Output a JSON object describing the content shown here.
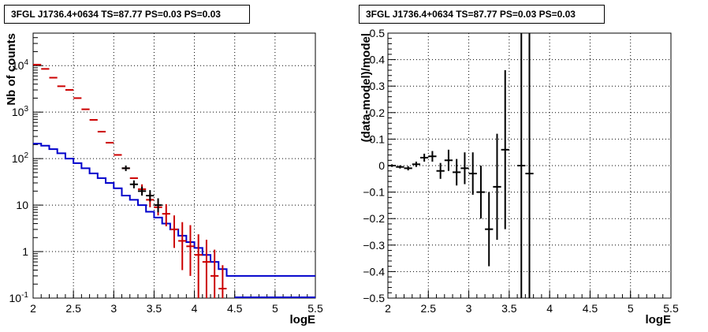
{
  "chart_data": [
    {
      "type": "step-histogram-with-errorbars",
      "title": "3FGL J1736.4+0634 TS=87.77 PS=0.03 PS=0.03",
      "xlabel": "logE",
      "ylabel": "Nb of counts",
      "xlim": [
        2,
        5.5
      ],
      "ylim": [
        0.1,
        50000
      ],
      "yscale": "log",
      "grid": true,
      "x_ticks": [
        "2",
        "2.5",
        "3",
        "3.5",
        "4",
        "4.5",
        "5",
        "5.5"
      ],
      "y_ticks": [
        {
          "v": 0.1,
          "label": "10^-1"
        },
        {
          "v": 1,
          "label": "1"
        },
        {
          "v": 10,
          "label": "10"
        },
        {
          "v": 100,
          "label": "10^2"
        },
        {
          "v": 1000,
          "label": "10^3"
        },
        {
          "v": 10000,
          "label": "10^4"
        }
      ],
      "bin_width": 0.1,
      "series": [
        {
          "role": "model",
          "color": "#0000cc",
          "bins_start": [
            2.0,
            2.1,
            2.2,
            2.3,
            2.4,
            2.5,
            2.6,
            2.7,
            2.8,
            2.9,
            3.0,
            3.1,
            3.2,
            3.3,
            3.4,
            3.5,
            3.6,
            3.7,
            3.8,
            3.9,
            4.0,
            4.1,
            4.2,
            4.3,
            4.4
          ],
          "values": [
            210,
            190,
            160,
            130,
            100,
            80,
            62,
            48,
            38,
            30,
            23,
            16,
            13,
            10,
            7.2,
            5.4,
            4.0,
            3.0,
            2.2,
            1.6,
            1.2,
            0.85,
            0.6,
            0.42,
            0.3
          ]
        },
        {
          "role": "model-total",
          "color": "#cc0000",
          "x": [
            2.05,
            2.15,
            2.25,
            2.35,
            2.45,
            2.55,
            2.65,
            2.75,
            2.85,
            2.95,
            3.05,
            3.15,
            3.25,
            3.35,
            3.45,
            3.55,
            3.65,
            3.75,
            3.85,
            3.95,
            4.05,
            4.15,
            4.25,
            4.35
          ],
          "y": [
            10500,
            8500,
            5500,
            3600,
            3000,
            2000,
            1150,
            680,
            380,
            220,
            120,
            62,
            38,
            22,
            13,
            9,
            6.5,
            3.0,
            1.7,
            1.3,
            0.85,
            0.6,
            0.3,
            0.16
          ],
          "yerr_low": [
            0,
            0,
            0,
            0,
            0,
            0,
            0,
            0,
            0,
            0,
            0,
            0,
            0,
            5,
            4,
            3,
            3,
            1.8,
            1.3,
            1.0,
            0.8,
            0.5,
            0.2,
            0.1
          ],
          "yerr_high": [
            0,
            0,
            0,
            0,
            0,
            0,
            0,
            0,
            0,
            0,
            0,
            0,
            0,
            6,
            5,
            4,
            4,
            3,
            2.6,
            2.4,
            1.5,
            1.2,
            0.8,
            0.35
          ]
        },
        {
          "role": "data",
          "color": "#000000",
          "x": [
            3.15,
            3.25,
            3.35,
            3.45,
            3.55
          ],
          "y": [
            62,
            28,
            20,
            16,
            10
          ],
          "yerr_low": [
            8,
            5,
            4,
            4,
            3
          ],
          "yerr_high": [
            9,
            6,
            5,
            5,
            4
          ]
        }
      ]
    },
    {
      "type": "errorbar",
      "title": "3FGL J1736.4+0634 TS=87.77 PS=0.03 PS=0.03",
      "xlabel": "logE",
      "ylabel": "(data-model)/model",
      "xlim": [
        2,
        5.5
      ],
      "ylim": [
        -0.5,
        0.5
      ],
      "grid": true,
      "x_ticks": [
        "2",
        "2.5",
        "3",
        "3.5",
        "4",
        "4.5",
        "5",
        "5.5"
      ],
      "y_ticks": [
        "−0.5",
        "−0.4",
        "−0.3",
        "−0.2",
        "−0.1",
        "0",
        "0.1",
        "0.2",
        "0.3",
        "0.4",
        "0.5"
      ],
      "series": [
        {
          "role": "residuals",
          "color": "#000000",
          "x": [
            2.05,
            2.15,
            2.25,
            2.35,
            2.45,
            2.55,
            2.65,
            2.75,
            2.85,
            2.95,
            3.05,
            3.15,
            3.25,
            3.35,
            3.45,
            3.65,
            3.75
          ],
          "y": [
            0.0,
            -0.005,
            -0.01,
            0.005,
            0.03,
            0.035,
            -0.02,
            0.02,
            -0.025,
            -0.01,
            -0.03,
            -0.1,
            -0.24,
            -0.08,
            0.06,
            0.0,
            -0.03
          ],
          "yerr": [
            0.005,
            0.006,
            0.008,
            0.01,
            0.015,
            0.02,
            0.03,
            0.04,
            0.05,
            0.06,
            0.08,
            0.1,
            0.14,
            0.2,
            0.3,
            0.7,
            0.7
          ]
        }
      ]
    }
  ]
}
